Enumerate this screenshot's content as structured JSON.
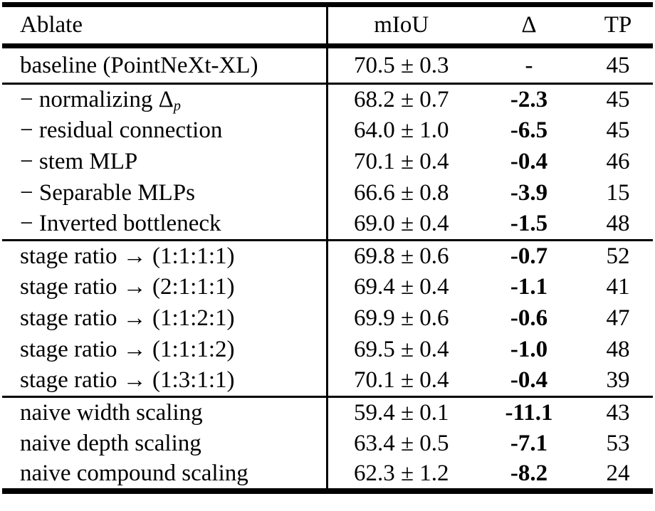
{
  "table": {
    "colors": {
      "text": "#000000",
      "background": "#ffffff",
      "rule": "#000000"
    },
    "columns": [
      {
        "label": "Ablate"
      },
      {
        "label": "mIoU"
      },
      {
        "label": "Δ"
      },
      {
        "label": "TP"
      }
    ],
    "sections": [
      {
        "name": "baseline",
        "rows": [
          {
            "ablate": "baseline (PointNeXt-XL)",
            "miou": "70.5 ± 0.3",
            "delta": "-",
            "delta_bold": false,
            "tp": "45"
          }
        ]
      },
      {
        "name": "component-ablations",
        "rows": [
          {
            "ablate": "− normalizing Δ",
            "ablate_sub": "p",
            "miou": "68.2 ± 0.7",
            "delta": "-2.3",
            "delta_bold": true,
            "tp": "45"
          },
          {
            "ablate": "− residual connection",
            "miou": "64.0 ± 1.0",
            "delta": "-6.5",
            "delta_bold": true,
            "tp": "45"
          },
          {
            "ablate": "− stem MLP",
            "miou": "70.1 ± 0.4",
            "delta": "-0.4",
            "delta_bold": true,
            "tp": "46"
          },
          {
            "ablate": "− Separable MLPs",
            "miou": "66.6 ± 0.8",
            "delta": "-3.9",
            "delta_bold": true,
            "tp": "15"
          },
          {
            "ablate": "− Inverted bottleneck",
            "miou": "69.0 ± 0.4",
            "delta": "-1.5",
            "delta_bold": true,
            "tp": "48"
          }
        ]
      },
      {
        "name": "stage-ratio",
        "rows": [
          {
            "ablate": "stage ratio → (1:1:1:1)",
            "miou": "69.8 ± 0.6",
            "delta": "-0.7",
            "delta_bold": true,
            "tp": "52"
          },
          {
            "ablate": "stage ratio → (2:1:1:1)",
            "miou": "69.4 ± 0.4",
            "delta": "-1.1",
            "delta_bold": true,
            "tp": "41"
          },
          {
            "ablate": "stage ratio → (1:1:2:1)",
            "miou": "69.9 ± 0.6",
            "delta": "-0.6",
            "delta_bold": true,
            "tp": "47"
          },
          {
            "ablate": "stage ratio → (1:1:1:2)",
            "miou": "69.5 ± 0.4",
            "delta": "-1.0",
            "delta_bold": true,
            "tp": "48"
          },
          {
            "ablate": "stage ratio → (1:3:1:1)",
            "miou": "70.1 ± 0.4",
            "delta": "-0.4",
            "delta_bold": true,
            "tp": "39"
          }
        ]
      },
      {
        "name": "naive-scaling",
        "rows": [
          {
            "ablate": "naive width scaling",
            "miou": "59.4 ± 0.1",
            "delta": "-11.1",
            "delta_bold": true,
            "tp": "43"
          },
          {
            "ablate": "naive depth scaling",
            "miou": "63.4 ± 0.5",
            "delta": "-7.1",
            "delta_bold": true,
            "tp": "53"
          },
          {
            "ablate": "naive compound scaling",
            "miou": "62.3 ± 1.2",
            "delta": "-8.2",
            "delta_bold": true,
            "tp": "24"
          }
        ]
      }
    ]
  }
}
